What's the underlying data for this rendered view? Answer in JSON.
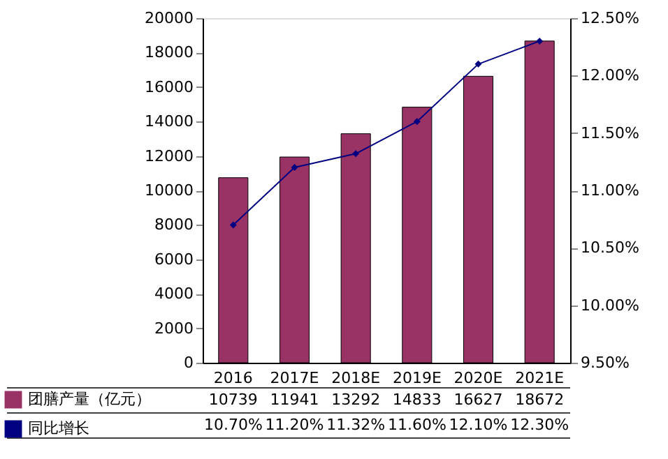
{
  "chart_data": {
    "type": "bar",
    "categories": [
      "2016",
      "2017E",
      "2018E",
      "2019E",
      "2020E",
      "2021E"
    ],
    "series": [
      {
        "name": "团膳产量（亿元）",
        "color": "#993366",
        "values": [
          10739,
          11941,
          13292,
          14833,
          16627,
          18672
        ]
      },
      {
        "name": "同比增长",
        "type": "line",
        "axis": "y2",
        "color": "#000080",
        "marker": "diamond",
        "values": [
          10.7,
          11.2,
          11.32,
          11.6,
          12.1,
          12.3
        ],
        "value_labels": [
          "10.70%",
          "11.20%",
          "11.32%",
          "11.60%",
          "12.10%",
          "12.30%"
        ]
      }
    ],
    "ylim": [
      0,
      20000
    ],
    "yticks": [
      0,
      2000,
      4000,
      6000,
      8000,
      10000,
      12000,
      14000,
      16000,
      18000,
      20000
    ],
    "y2lim": [
      9.5,
      12.5
    ],
    "y2ticks": [
      {
        "value": 9.5,
        "label": "9.50%"
      },
      {
        "value": 10,
        "label": "10.00%"
      },
      {
        "value": 10.5,
        "label": "10.50%"
      },
      {
        "value": 11,
        "label": "11.00%"
      },
      {
        "value": 11.5,
        "label": "11.50%"
      },
      {
        "value": 12,
        "label": "12.00%"
      },
      {
        "value": 12.5,
        "label": "12.50%"
      }
    ],
    "data_labels": true,
    "grid": false,
    "legend": "bottom left"
  }
}
